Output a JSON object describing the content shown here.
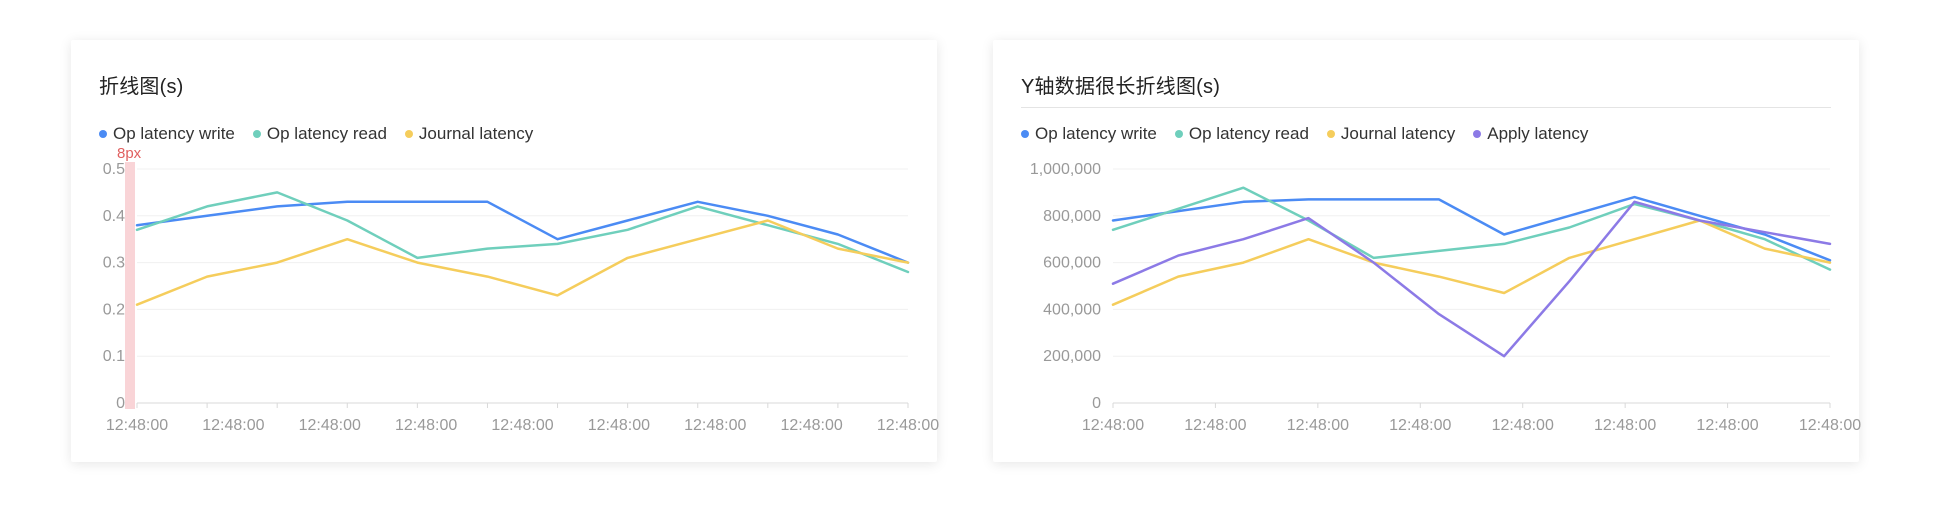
{
  "chart_data": [
    {
      "type": "line",
      "title": "折线图(s)",
      "x": [
        "12:48:00",
        "12:48:00",
        "12:48:00",
        "12:48:00",
        "12:48:00",
        "12:48:00",
        "12:48:00",
        "12:48:00",
        "12:48:00",
        "12:48:00",
        "12:48:00",
        "12:48:00"
      ],
      "xtick_labels": [
        "12:48:00",
        "12:48:00",
        "12:48:00",
        "12:48:00",
        "12:48:00",
        "12:48:00",
        "12:48:00",
        "12:48:00",
        "12:48:00"
      ],
      "ytick_labels": [
        "0",
        "0.1",
        "0.2",
        "0.3",
        "0.4",
        "0.5"
      ],
      "ylim": [
        0,
        0.5
      ],
      "grid": true,
      "legend_placement": "top-left",
      "annotation": "8px",
      "series": [
        {
          "name": "Op latency write",
          "color": "#4b8bf4",
          "values": [
            0.38,
            0.4,
            0.42,
            0.43,
            0.43,
            0.43,
            0.35,
            0.39,
            0.43,
            0.4,
            0.36,
            0.3
          ]
        },
        {
          "name": "Op latency read",
          "color": "#6fcfbc",
          "values": [
            0.37,
            0.42,
            0.45,
            0.39,
            0.31,
            0.33,
            0.34,
            0.37,
            0.42,
            0.38,
            0.34,
            0.28
          ]
        },
        {
          "name": "Journal latency",
          "color": "#f5cd5c",
          "values": [
            0.21,
            0.27,
            0.3,
            0.35,
            0.3,
            0.27,
            0.23,
            0.31,
            0.35,
            0.39,
            0.33,
            0.3
          ]
        }
      ]
    },
    {
      "type": "line",
      "title": "Y轴数据很长折线图(s)",
      "x": [
        "12:48:00",
        "12:48:00",
        "12:48:00",
        "12:48:00",
        "12:48:00",
        "12:48:00",
        "12:48:00",
        "12:48:00",
        "12:48:00",
        "12:48:00",
        "12:48:00",
        "12:48:00"
      ],
      "xtick_labels": [
        "12:48:00",
        "12:48:00",
        "12:48:00",
        "12:48:00",
        "12:48:00",
        "12:48:00",
        "12:48:00",
        "12:48:00"
      ],
      "ytick_labels": [
        "0",
        "200,000",
        "400,000",
        "600,000",
        "800,000",
        "1,000,000"
      ],
      "ylim": [
        0,
        1000000
      ],
      "grid": true,
      "legend_placement": "top-left",
      "series": [
        {
          "name": "Op latency write",
          "color": "#4b8bf4",
          "values": [
            780000,
            820000,
            860000,
            870000,
            870000,
            870000,
            720000,
            800000,
            880000,
            800000,
            720000,
            610000
          ]
        },
        {
          "name": "Op latency read",
          "color": "#6fcfbc",
          "values": [
            740000,
            830000,
            920000,
            780000,
            620000,
            650000,
            680000,
            750000,
            850000,
            780000,
            700000,
            570000
          ]
        },
        {
          "name": "Journal latency",
          "color": "#f5cd5c",
          "values": [
            420000,
            540000,
            600000,
            700000,
            600000,
            540000,
            470000,
            620000,
            700000,
            780000,
            660000,
            600000
          ]
        },
        {
          "name": "Apply latency",
          "color": "#8c7ae6",
          "values": [
            510000,
            630000,
            700000,
            790000,
            600000,
            380000,
            200000,
            520000,
            860000,
            780000,
            730000,
            680000
          ]
        }
      ]
    }
  ]
}
